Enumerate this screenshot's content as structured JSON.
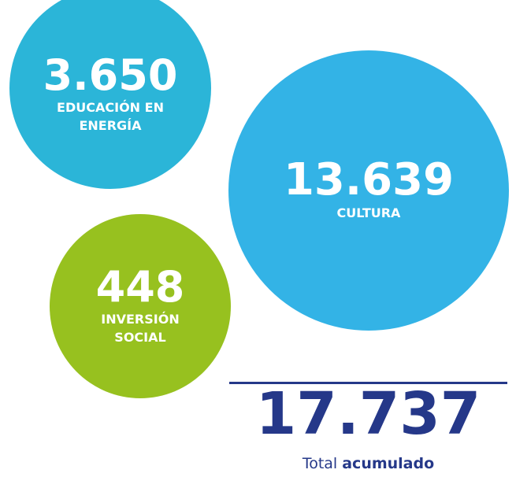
{
  "bubbles": [
    {
      "value": "3.650",
      "label": "EDUCACIÓN EN ENERGÍA"
    },
    {
      "value": "13.639",
      "label": "CULTURA"
    },
    {
      "value": "448",
      "label": "INVERSIÓN SOCIAL"
    }
  ],
  "total": {
    "value": "17.737",
    "label": "Total",
    "label_emphasis": "acumulado"
  }
}
